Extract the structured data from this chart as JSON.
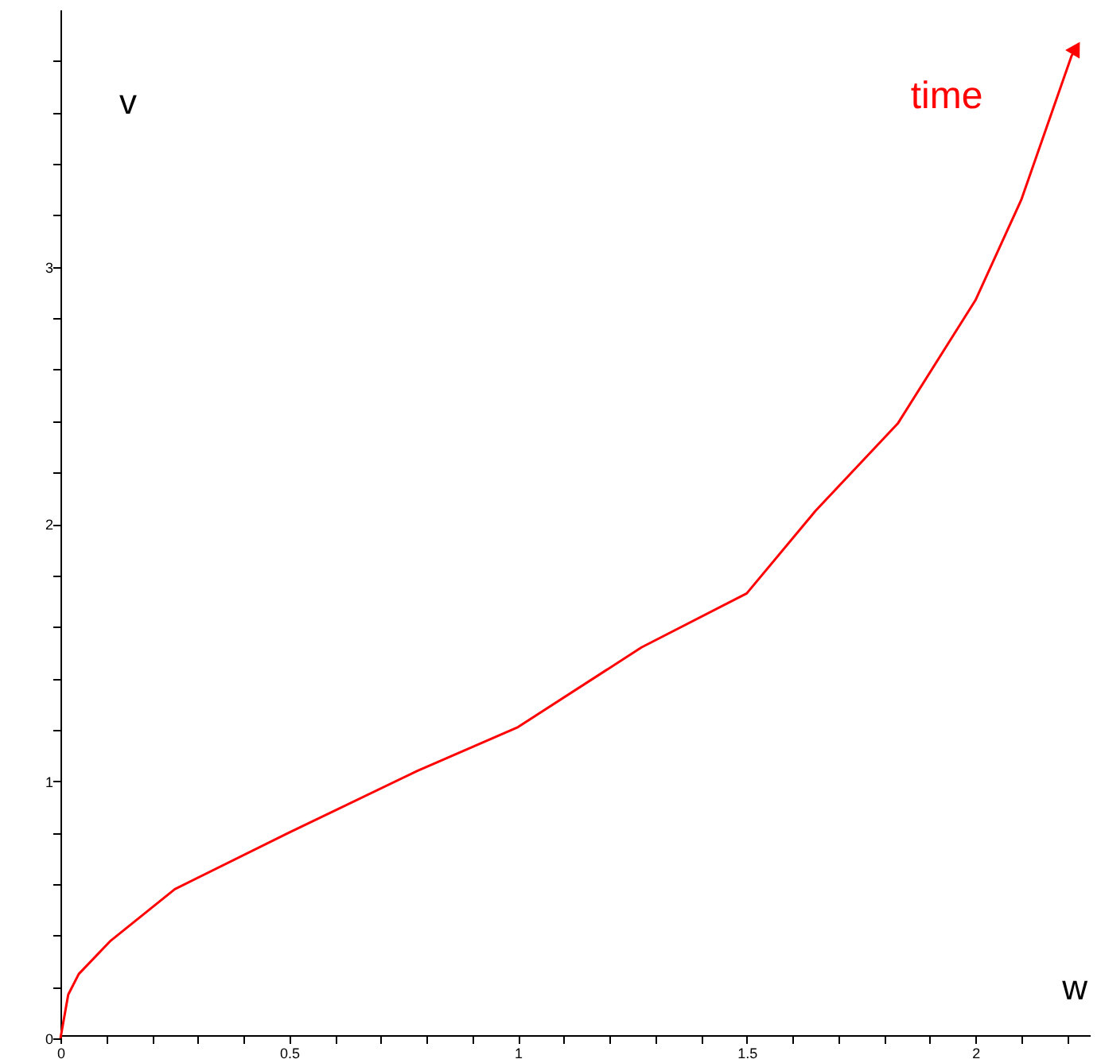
{
  "chart_data": {
    "type": "line",
    "xlabel": "w",
    "ylabel": "v",
    "grid": false,
    "marker": "none",
    "line_style": "solid",
    "xlim": [
      0,
      2.25
    ],
    "ylim": [
      0,
      4
    ],
    "xticks": [
      0,
      {
        "value": 0.1,
        "label": null
      },
      {
        "value": 0.2,
        "label": null
      },
      {
        "value": 0.3,
        "label": null
      },
      {
        "value": 0.4,
        "label": null
      },
      0.5,
      {
        "value": 0.6,
        "label": null
      },
      {
        "value": 0.7,
        "label": null
      },
      {
        "value": 0.8,
        "label": null
      },
      {
        "value": 0.9,
        "label": null
      },
      1,
      {
        "value": 1.1,
        "label": null
      },
      {
        "value": 1.2,
        "label": null
      },
      {
        "value": 1.3,
        "label": null
      },
      {
        "value": 1.4,
        "label": null
      },
      1.5,
      {
        "value": 1.6,
        "label": null
      },
      {
        "value": 1.7,
        "label": null
      },
      {
        "value": 1.8,
        "label": null
      },
      {
        "value": 1.9,
        "label": null
      },
      2,
      {
        "value": 2.1,
        "label": null
      },
      {
        "value": 2.2,
        "label": null
      }
    ],
    "yticks": [
      0,
      {
        "value": 0.2,
        "label": null
      },
      {
        "value": 0.4,
        "label": null
      },
      {
        "value": 0.6,
        "label": null
      },
      {
        "value": 0.8,
        "label": null
      },
      1,
      {
        "value": 1.2,
        "label": null
      },
      {
        "value": 1.4,
        "label": null
      },
      {
        "value": 1.6,
        "label": null
      },
      {
        "value": 1.8,
        "label": null
      },
      2,
      {
        "value": 2.2,
        "label": null
      },
      {
        "value": 2.4,
        "label": null
      },
      {
        "value": 2.6,
        "label": null
      },
      {
        "value": 2.8,
        "label": null
      },
      3,
      {
        "value": 3.2,
        "label": null
      },
      {
        "value": 3.4,
        "label": null
      },
      {
        "value": 3.6,
        "label": null
      },
      {
        "value": 3.8,
        "label": null
      }
    ],
    "series": [
      {
        "color": "#ff0000",
        "x": [
          0,
          0.017,
          0.04,
          0.11,
          0.25,
          0.5,
          0.78,
          1.0,
          1.27,
          1.5,
          1.65,
          1.83,
          2.0,
          2.1,
          2.21,
          2.22
        ],
        "values": [
          0,
          0.17,
          0.25,
          0.38,
          0.58,
          0.8,
          1.04,
          1.21,
          1.52,
          1.73,
          2.05,
          2.39,
          2.87,
          3.26,
          3.82,
          3.85
        ]
      }
    ],
    "annotations": [
      "time"
    ]
  }
}
